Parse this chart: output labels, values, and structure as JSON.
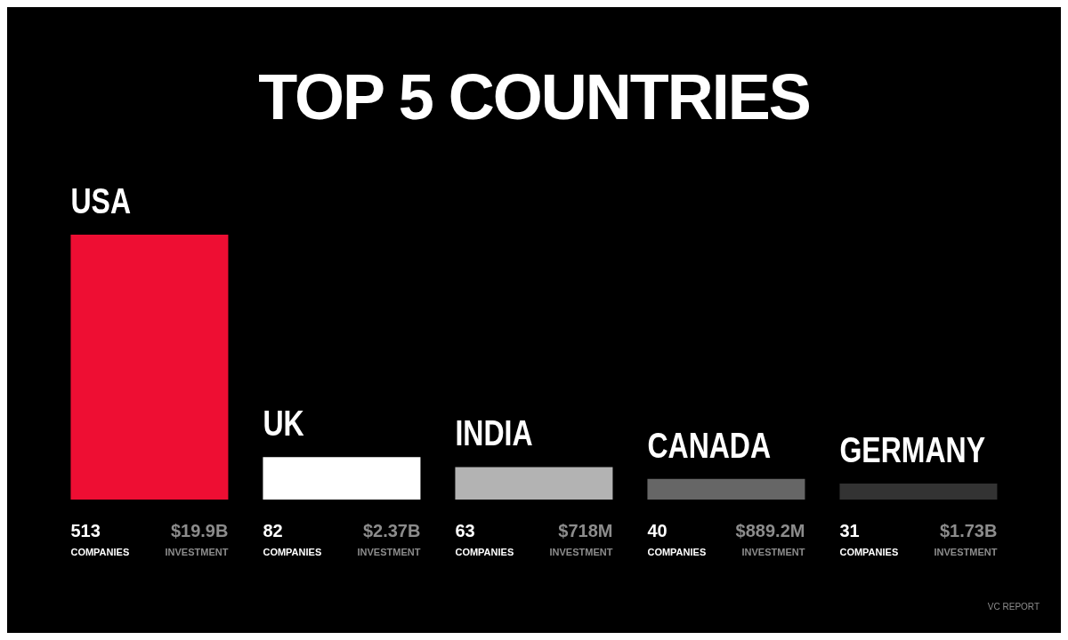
{
  "chart_data": {
    "type": "bar",
    "title": "TOP 5 COUNTRIES",
    "categories": [
      "USA",
      "UK",
      "INDIA",
      "CANADA",
      "GERMANY"
    ],
    "values": [
      513,
      82,
      63,
      40,
      31
    ],
    "colors": [
      "#ee0e33",
      "#ffffff",
      "#b3b3b3",
      "#666666",
      "#333333"
    ],
    "data_labels": true,
    "annotations": [
      "COMPANIES",
      "$19.9B",
      "INVESTMENT",
      "COMPANIES",
      "$2.37B",
      "INVESTMENT",
      "COMPANIES",
      "$718M",
      "INVESTMENT",
      "COMPANIES",
      "$889.2M",
      "INVESTMENT",
      "COMPANIES",
      "$1.73B",
      "INVESTMENT",
      "VC REPORT"
    ]
  }
}
